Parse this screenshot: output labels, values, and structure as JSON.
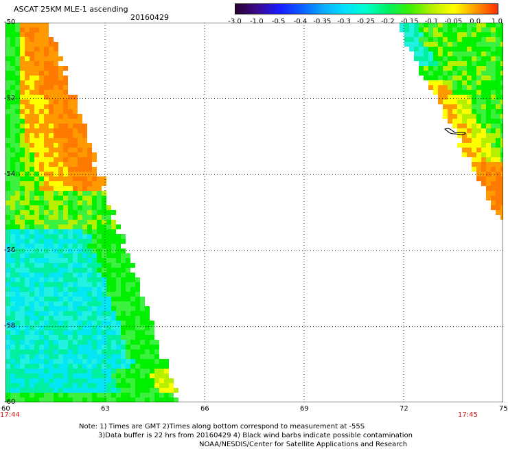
{
  "header": {
    "title": "ASCAT 25KM MLE-1 ascending",
    "date": "20160429"
  },
  "colorbar": {
    "ticks": [
      "-3.0",
      "-1.0",
      "-0.5",
      "-0.4",
      "-0.35",
      "-0.3",
      "-0.25",
      "-0.2",
      "-0.15",
      "-0.1",
      "-0.05",
      "0.0",
      "1.0"
    ],
    "colors": [
      "#2a0030",
      "#3b0a8e",
      "#1a1aff",
      "#0a5cff",
      "#0aa8ff",
      "#05e0ff",
      "#00ffcc",
      "#00f060",
      "#3cf000",
      "#b6f000",
      "#ffff00",
      "#ff9900",
      "#ff2a00"
    ]
  },
  "map": {
    "lat_labels": [
      "-50",
      "-52",
      "-54",
      "-56",
      "-58",
      "-60"
    ],
    "lon_labels": [
      "60",
      "63",
      "66",
      "69",
      "72",
      "75"
    ],
    "time_left": "17:44",
    "time_right": "17:45"
  },
  "notes": {
    "line1": "Note: 1) Times are GMT 2)Times along bottom correspond to measurement at -55S",
    "line2": "3)Data buffer is 22 hrs from 20160429 4) Black wind barbs indicate possible contamination",
    "line3": "NOAA/NESDIS/Center for Satellite Applications and Research"
  }
}
